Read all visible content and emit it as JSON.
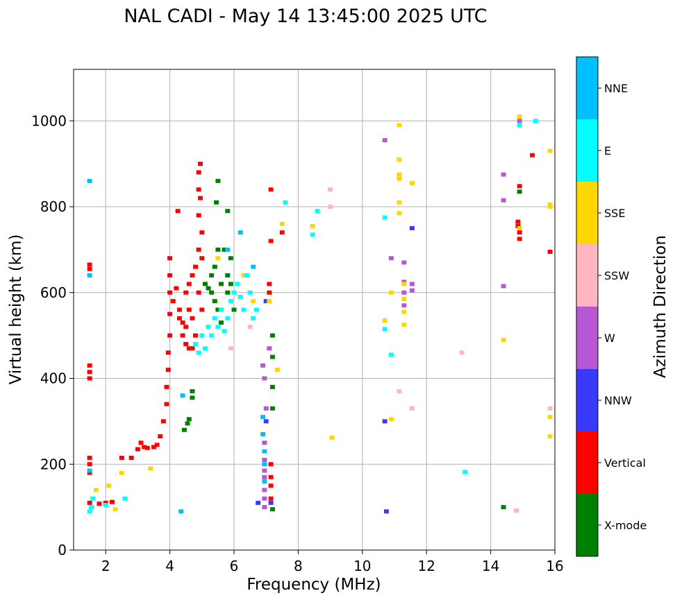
{
  "chart_data": {
    "type": "scatter",
    "title": "NAL CADI - May 14 13:45:00 2025 UTC",
    "xlabel": "Frequency (MHz)",
    "ylabel": "Virtual height (km)",
    "xlim": [
      1,
      16
    ],
    "ylim": [
      0,
      1120
    ],
    "xticks": [
      2,
      4,
      6,
      8,
      10,
      12,
      14,
      16
    ],
    "yticks": [
      0,
      200,
      400,
      600,
      800,
      1000
    ],
    "grid": true,
    "colorbar": {
      "label": "Azimuth Direction",
      "categories": [
        {
          "name": "X-mode",
          "color": "#008000"
        },
        {
          "name": "Vertical",
          "color": "#ff0000"
        },
        {
          "name": "NNW",
          "color": "#3a3aff"
        },
        {
          "name": "W",
          "color": "#b857d6"
        },
        {
          "name": "SSW",
          "color": "#ffb6c1"
        },
        {
          "name": "SSE",
          "color": "#ffd700"
        },
        {
          "name": "E",
          "color": "#00ffff"
        },
        {
          "name": "NNE",
          "color": "#00bfff"
        }
      ]
    },
    "series": [
      {
        "name": "Vertical",
        "points": [
          [
            1.5,
            110
          ],
          [
            1.5,
            180
          ],
          [
            1.5,
            200
          ],
          [
            1.5,
            215
          ],
          [
            1.5,
            400
          ],
          [
            1.5,
            415
          ],
          [
            1.5,
            430
          ],
          [
            1.5,
            655
          ],
          [
            1.5,
            665
          ],
          [
            1.8,
            108
          ],
          [
            2.0,
            110
          ],
          [
            2.2,
            112
          ],
          [
            2.5,
            215
          ],
          [
            2.8,
            215
          ],
          [
            3.0,
            235
          ],
          [
            3.1,
            250
          ],
          [
            3.2,
            240
          ],
          [
            3.3,
            238
          ],
          [
            3.5,
            240
          ],
          [
            3.6,
            245
          ],
          [
            3.7,
            265
          ],
          [
            3.8,
            300
          ],
          [
            3.9,
            340
          ],
          [
            3.9,
            380
          ],
          [
            3.95,
            420
          ],
          [
            3.95,
            460
          ],
          [
            4.0,
            500
          ],
          [
            4.0,
            550
          ],
          [
            4.0,
            600
          ],
          [
            4.0,
            640
          ],
          [
            4.0,
            680
          ],
          [
            4.1,
            580
          ],
          [
            4.2,
            610
          ],
          [
            4.25,
            790
          ],
          [
            4.3,
            540
          ],
          [
            4.3,
            560
          ],
          [
            4.4,
            500
          ],
          [
            4.4,
            530
          ],
          [
            4.5,
            480
          ],
          [
            4.5,
            520
          ],
          [
            4.5,
            600
          ],
          [
            4.6,
            470
          ],
          [
            4.6,
            560
          ],
          [
            4.6,
            620
          ],
          [
            4.7,
            470
          ],
          [
            4.7,
            540
          ],
          [
            4.7,
            640
          ],
          [
            4.8,
            500
          ],
          [
            4.8,
            660
          ],
          [
            4.9,
            600
          ],
          [
            4.9,
            700
          ],
          [
            4.9,
            780
          ],
          [
            5.0,
            680
          ],
          [
            5.0,
            740
          ],
          [
            4.9,
            880
          ],
          [
            4.95,
            900
          ],
          [
            4.9,
            840
          ],
          [
            4.95,
            820
          ],
          [
            5.0,
            560
          ],
          [
            7.15,
            840
          ],
          [
            7.15,
            720
          ],
          [
            7.1,
            620
          ],
          [
            7.1,
            600
          ],
          [
            7.15,
            200
          ],
          [
            7.15,
            170
          ],
          [
            7.15,
            150
          ],
          [
            7.15,
            120
          ],
          [
            7.5,
            740
          ],
          [
            14.9,
            725
          ],
          [
            14.9,
            740
          ],
          [
            14.85,
            755
          ],
          [
            14.85,
            765
          ],
          [
            14.9,
            848
          ],
          [
            15.3,
            920
          ],
          [
            15.85,
            695
          ]
        ]
      },
      {
        "name": "X-mode",
        "points": [
          [
            4.45,
            280
          ],
          [
            4.55,
            295
          ],
          [
            4.6,
            305
          ],
          [
            4.7,
            355
          ],
          [
            4.7,
            370
          ],
          [
            5.1,
            620
          ],
          [
            5.2,
            610
          ],
          [
            5.3,
            600
          ],
          [
            5.3,
            640
          ],
          [
            5.4,
            580
          ],
          [
            5.4,
            660
          ],
          [
            5.5,
            560
          ],
          [
            5.5,
            700
          ],
          [
            5.6,
            620
          ],
          [
            5.6,
            530
          ],
          [
            5.7,
            700
          ],
          [
            5.8,
            600
          ],
          [
            5.8,
            640
          ],
          [
            5.8,
            790
          ],
          [
            5.9,
            680
          ],
          [
            5.9,
            620
          ],
          [
            6.0,
            560
          ],
          [
            5.45,
            810
          ],
          [
            5.5,
            860
          ],
          [
            7.2,
            450
          ],
          [
            7.2,
            500
          ],
          [
            7.2,
            380
          ],
          [
            7.2,
            330
          ],
          [
            7.2,
            95
          ],
          [
            14.4,
            100
          ],
          [
            14.9,
            835
          ]
        ]
      },
      {
        "name": "NNW",
        "points": [
          [
            7.0,
            580
          ],
          [
            7.0,
            300
          ],
          [
            6.75,
            110
          ],
          [
            7.15,
            110
          ],
          [
            10.7,
            300
          ],
          [
            10.75,
            90
          ],
          [
            11.55,
            750
          ]
        ]
      },
      {
        "name": "W",
        "points": [
          [
            6.9,
            430
          ],
          [
            6.95,
            400
          ],
          [
            7.0,
            330
          ],
          [
            6.95,
            250
          ],
          [
            6.95,
            210
          ],
          [
            6.95,
            185
          ],
          [
            6.95,
            170
          ],
          [
            6.95,
            140
          ],
          [
            6.95,
            120
          ],
          [
            6.95,
            100
          ],
          [
            7.1,
            470
          ],
          [
            10.7,
            955
          ],
          [
            10.9,
            680
          ],
          [
            11.3,
            670
          ],
          [
            11.3,
            625
          ],
          [
            11.3,
            600
          ],
          [
            11.3,
            570
          ],
          [
            11.55,
            620
          ],
          [
            11.55,
            605
          ],
          [
            14.4,
            875
          ],
          [
            14.4,
            815
          ],
          [
            14.4,
            615
          ],
          [
            14.9,
            1000
          ]
        ]
      },
      {
        "name": "SSW",
        "points": [
          [
            5.9,
            470
          ],
          [
            6.5,
            520
          ],
          [
            9.0,
            840
          ],
          [
            9.0,
            800
          ],
          [
            11.15,
            370
          ],
          [
            11.55,
            330
          ],
          [
            13.1,
            460
          ],
          [
            14.8,
            92
          ],
          [
            15.85,
            330
          ]
        ]
      },
      {
        "name": "SSE",
        "points": [
          [
            1.7,
            140
          ],
          [
            2.1,
            150
          ],
          [
            2.3,
            95
          ],
          [
            2.5,
            180
          ],
          [
            3.4,
            190
          ],
          [
            5.5,
            680
          ],
          [
            6.3,
            640
          ],
          [
            6.6,
            580
          ],
          [
            7.1,
            580
          ],
          [
            7.35,
            420
          ],
          [
            7.5,
            760
          ],
          [
            8.45,
            755
          ],
          [
            9.05,
            262
          ],
          [
            10.7,
            535
          ],
          [
            10.9,
            305
          ],
          [
            10.9,
            600
          ],
          [
            11.15,
            990
          ],
          [
            11.15,
            910
          ],
          [
            11.15,
            875
          ],
          [
            11.15,
            865
          ],
          [
            11.15,
            810
          ],
          [
            11.15,
            785
          ],
          [
            11.3,
            620
          ],
          [
            11.3,
            585
          ],
          [
            11.3,
            555
          ],
          [
            11.3,
            525
          ],
          [
            11.55,
            855
          ],
          [
            14.4,
            490
          ],
          [
            14.9,
            1010
          ],
          [
            14.9,
            750
          ],
          [
            15.85,
            930
          ],
          [
            15.85,
            805
          ],
          [
            15.85,
            800
          ],
          [
            15.85,
            310
          ],
          [
            15.85,
            265
          ]
        ]
      },
      {
        "name": "E",
        "points": [
          [
            1.5,
            90
          ],
          [
            1.55,
            100
          ],
          [
            1.6,
            120
          ],
          [
            2.0,
            105
          ],
          [
            2.6,
            120
          ],
          [
            4.8,
            480
          ],
          [
            4.9,
            460
          ],
          [
            5.0,
            500
          ],
          [
            5.1,
            470
          ],
          [
            5.2,
            520
          ],
          [
            5.3,
            500
          ],
          [
            5.4,
            540
          ],
          [
            5.5,
            520
          ],
          [
            5.6,
            560
          ],
          [
            5.7,
            510
          ],
          [
            5.8,
            540
          ],
          [
            5.9,
            580
          ],
          [
            6.0,
            600
          ],
          [
            6.1,
            620
          ],
          [
            6.2,
            590
          ],
          [
            6.3,
            560
          ],
          [
            6.4,
            640
          ],
          [
            6.5,
            600
          ],
          [
            6.6,
            540
          ],
          [
            6.7,
            560
          ],
          [
            7.6,
            810
          ],
          [
            8.45,
            735
          ],
          [
            8.6,
            790
          ],
          [
            10.7,
            775
          ],
          [
            10.7,
            515
          ],
          [
            10.9,
            455
          ],
          [
            13.2,
            182
          ],
          [
            14.9,
            990
          ],
          [
            15.4,
            1000
          ]
        ]
      },
      {
        "name": "NNE",
        "points": [
          [
            1.5,
            860
          ],
          [
            1.5,
            640
          ],
          [
            1.5,
            185
          ],
          [
            4.35,
            90
          ],
          [
            4.4,
            360
          ],
          [
            5.8,
            700
          ],
          [
            6.2,
            740
          ],
          [
            6.6,
            660
          ],
          [
            6.9,
            310
          ],
          [
            6.9,
            270
          ],
          [
            6.95,
            230
          ],
          [
            6.95,
            200
          ],
          [
            6.95,
            160
          ]
        ]
      }
    ]
  }
}
